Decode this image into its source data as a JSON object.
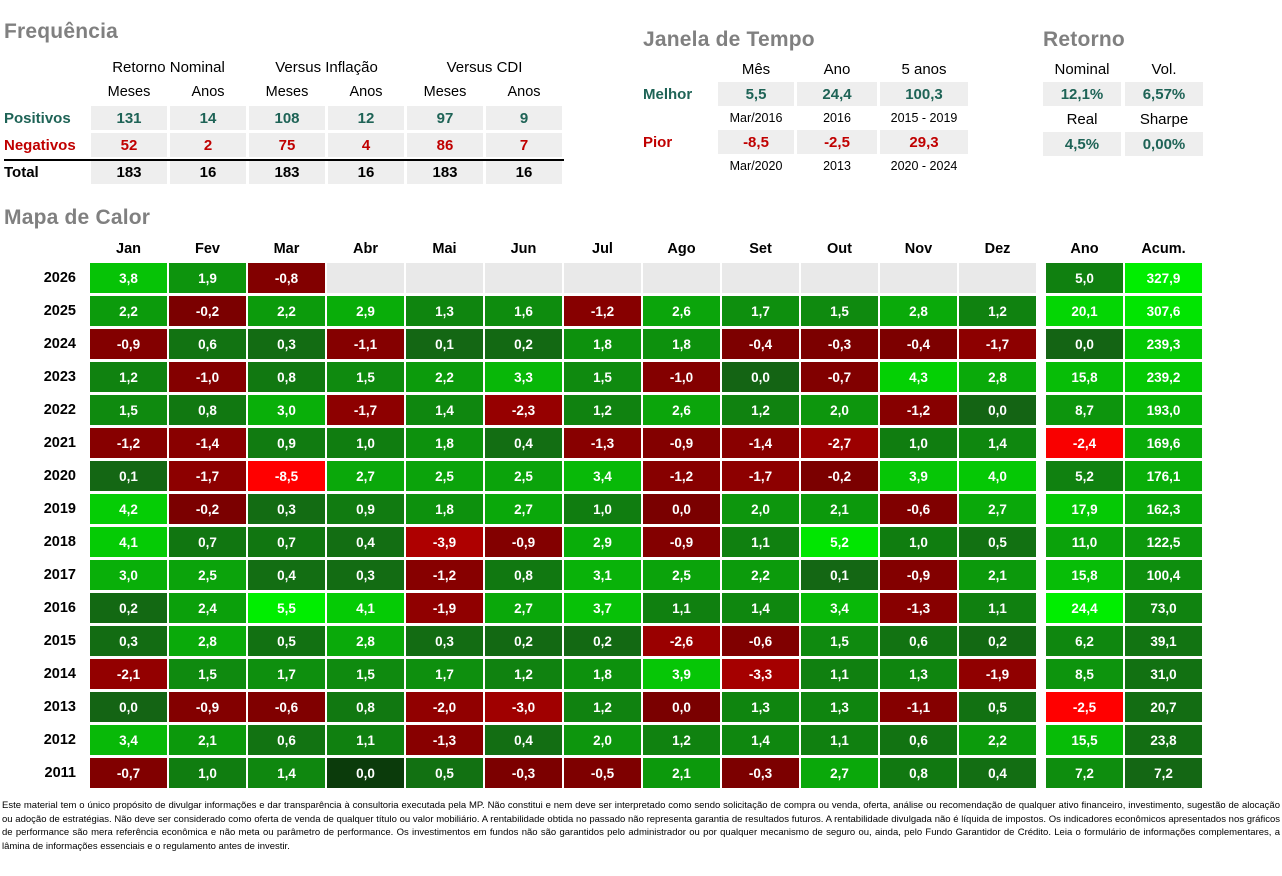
{
  "frequencia": {
    "title": "Frequência",
    "group_headers": [
      "Retorno Nominal",
      "Versus Inflação",
      "Versus CDI"
    ],
    "sub_headers": [
      "Meses",
      "Anos",
      "Meses",
      "Anos",
      "Meses",
      "Anos"
    ],
    "rows": [
      {
        "label": "Positivos",
        "type": "pos",
        "values": [
          "131",
          "14",
          "108",
          "12",
          "97",
          "9"
        ]
      },
      {
        "label": "Negativos",
        "type": "neg",
        "values": [
          "52",
          "2",
          "75",
          "4",
          "86",
          "7"
        ]
      },
      {
        "label": "Total",
        "type": "total",
        "values": [
          "183",
          "16",
          "183",
          "16",
          "183",
          "16"
        ]
      }
    ]
  },
  "janela": {
    "title": "Janela de Tempo",
    "headers": [
      "Mês",
      "Ano",
      "5 anos"
    ],
    "melhor": {
      "label": "Melhor",
      "values": [
        "5,5",
        "24,4",
        "100,3"
      ],
      "periods": [
        "Mar/2016",
        "2016",
        "2015 - 2019"
      ]
    },
    "pior": {
      "label": "Pior",
      "values": [
        "-8,5",
        "-2,5",
        "29,3"
      ],
      "periods": [
        "Mar/2020",
        "2013",
        "2020 - 2024"
      ]
    }
  },
  "retorno": {
    "title": "Retorno",
    "rows": [
      {
        "headers": [
          "Nominal",
          "Vol."
        ],
        "values": [
          "12,1%",
          "6,57%"
        ]
      },
      {
        "headers": [
          "Real",
          "Sharpe"
        ],
        "values": [
          "4,5%",
          "0,00%"
        ]
      }
    ]
  },
  "chart_data": {
    "type": "heatmap",
    "title": "Mapa de Calor",
    "columns": [
      "Jan",
      "Fev",
      "Mar",
      "Abr",
      "Mai",
      "Jun",
      "Jul",
      "Ago",
      "Set",
      "Out",
      "Nov",
      "Dez"
    ],
    "summary_columns": [
      "Ano",
      "Acum."
    ],
    "rows": [
      {
        "year": "2026",
        "months": [
          3.8,
          1.9,
          -0.8,
          null,
          null,
          null,
          null,
          null,
          null,
          null,
          null,
          null
        ],
        "ano": 5.0,
        "acum": 327.9
      },
      {
        "year": "2025",
        "months": [
          2.2,
          -0.2,
          2.2,
          2.9,
          1.3,
          1.6,
          -1.2,
          2.6,
          1.7,
          1.5,
          2.8,
          1.2
        ],
        "ano": 20.1,
        "acum": 307.6
      },
      {
        "year": "2024",
        "months": [
          -0.9,
          0.6,
          0.3,
          -1.1,
          0.1,
          0.2,
          1.8,
          1.8,
          -0.4,
          -0.3,
          -0.4,
          -1.7
        ],
        "ano": 0.0,
        "acum": 239.3
      },
      {
        "year": "2023",
        "months": [
          1.2,
          -1.0,
          0.8,
          1.5,
          2.2,
          3.3,
          1.5,
          -1.0,
          0.0,
          -0.7,
          4.3,
          2.8
        ],
        "ano": 15.8,
        "acum": 239.2
      },
      {
        "year": "2022",
        "months": [
          1.5,
          0.8,
          3.0,
          -1.7,
          1.4,
          -2.3,
          1.2,
          2.6,
          1.2,
          2.0,
          -1.2,
          0.0
        ],
        "ano": 8.7,
        "acum": 193.0
      },
      {
        "year": "2021",
        "months": [
          -1.2,
          -1.4,
          0.9,
          1.0,
          1.8,
          0.4,
          -1.3,
          -0.9,
          -1.4,
          -2.7,
          1.0,
          1.4
        ],
        "ano": -2.4,
        "acum": 169.6
      },
      {
        "year": "2020",
        "months": [
          0.1,
          -1.7,
          -8.5,
          2.7,
          2.5,
          2.5,
          3.4,
          -1.2,
          -1.7,
          -0.2,
          3.9,
          4.0
        ],
        "ano": 5.2,
        "acum": 176.1
      },
      {
        "year": "2019",
        "months": [
          4.2,
          -0.2,
          0.3,
          0.9,
          1.8,
          2.7,
          1.0,
          0.0,
          2.0,
          2.1,
          -0.6,
          2.7
        ],
        "ano": 17.9,
        "acum": 162.3
      },
      {
        "year": "2018",
        "months": [
          4.1,
          0.7,
          0.7,
          0.4,
          -3.9,
          -0.9,
          2.9,
          -0.9,
          1.1,
          5.2,
          1.0,
          0.5
        ],
        "ano": 11.0,
        "acum": 122.5
      },
      {
        "year": "2017",
        "months": [
          3.0,
          2.5,
          0.4,
          0.3,
          -1.2,
          0.8,
          3.1,
          2.5,
          2.2,
          0.1,
          -0.9,
          2.1
        ],
        "ano": 15.8,
        "acum": 100.4
      },
      {
        "year": "2016",
        "months": [
          0.2,
          2.4,
          5.5,
          4.1,
          -1.9,
          2.7,
          3.7,
          1.1,
          1.4,
          3.4,
          -1.3,
          1.1
        ],
        "ano": 24.4,
        "acum": 73.0
      },
      {
        "year": "2015",
        "months": [
          0.3,
          2.8,
          0.5,
          2.8,
          0.3,
          0.2,
          0.2,
          -2.6,
          -0.6,
          1.5,
          0.6,
          0.2
        ],
        "ano": 6.2,
        "acum": 39.1
      },
      {
        "year": "2014",
        "months": [
          -2.1,
          1.5,
          1.7,
          1.5,
          1.7,
          1.2,
          1.8,
          3.9,
          -3.3,
          1.1,
          1.3,
          -1.9
        ],
        "ano": 8.5,
        "acum": 31.0
      },
      {
        "year": "2013",
        "months": [
          0.0,
          -0.9,
          -0.6,
          0.8,
          -2.0,
          -3.0,
          1.2,
          0.0,
          1.3,
          1.3,
          -1.1,
          0.5
        ],
        "ano": -2.5,
        "acum": 20.7
      },
      {
        "year": "2012",
        "months": [
          3.4,
          2.1,
          0.6,
          1.1,
          -1.3,
          0.4,
          2.0,
          1.2,
          1.4,
          1.1,
          0.6,
          2.2
        ],
        "ano": 15.5,
        "acum": 23.8
      },
      {
        "year": "2011",
        "months": [
          -0.7,
          1.0,
          1.4,
          0.0,
          0.5,
          -0.3,
          -0.5,
          2.1,
          -0.3,
          2.7,
          0.8,
          0.4
        ],
        "ano": 7.2,
        "acum": 7.2
      }
    ],
    "scales": {
      "months": {
        "min": -8.5,
        "max": 5.5
      },
      "ano": {
        "min": -2.5,
        "max": 24.4
      },
      "acum": {
        "min": 0,
        "max": 327.9
      }
    },
    "color_overrides": {
      "2019-7": "#7A0000",
      "2013-7": "#7A0000",
      "2011-3": "#0B3B0B"
    }
  },
  "colors": {
    "title_gray": "#808080",
    "positive_text": "#1E6356",
    "negative_text": "#C00000",
    "cell_bg": "#EEEEEE",
    "heat_empty": "#E9E9E9",
    "pos_low": "#146414",
    "pos_high": "#00EE00",
    "neg_low": "#7A0000",
    "neg_high": "#FF0000"
  },
  "disclaimer": "Este material tem o único propósito de divulgar informações e dar transparência à consultoria executada pela MP. Não constitui e nem deve ser interpretado como sendo solicitação de compra ou venda, oferta, análise ou recomendação de qualquer ativo financeiro, investimento, sugestão de alocação ou adoção de estratégias. Não deve ser considerado como oferta de venda de qualquer título ou valor mobiliário. A rentabilidade obtida no passado não representa garantia de resultados futuros. A rentabilidade divulgada não é líquida de impostos. Os indicadores econômicos apresentados nos gráficos de performance são mera referência econômica e não meta ou parâmetro de performance. Os investimentos em fundos não são garantidos pelo administrador ou por qualquer mecanismo de seguro ou, ainda, pelo Fundo Garantidor de Crédito. Leia o formulário de informações complementares, a lâmina de informações essenciais e o regulamento antes de investir."
}
